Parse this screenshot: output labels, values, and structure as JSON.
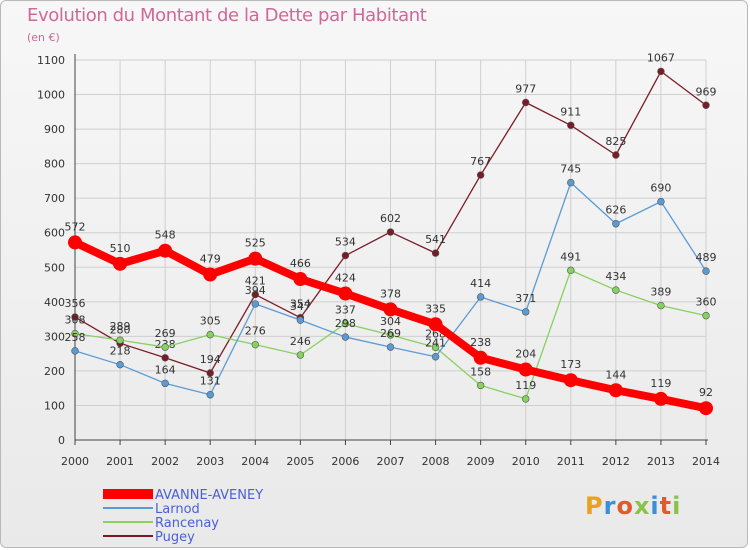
{
  "header": {
    "title": "Evolution du Montant de la Dette par Habitant",
    "unit": "(en €)"
  },
  "logo": {
    "text": "Proxiti",
    "colors": [
      "#e8a21c",
      "#3b8fd6",
      "#e05a2a",
      "#8bc34a",
      "#3b8fd6",
      "#e05a2a",
      "#8bc34a"
    ]
  },
  "colors": {
    "title": "#d0679a",
    "grid": "#cfcfcf",
    "axis": "#444444"
  },
  "chart_data": {
    "type": "line",
    "title": "Evolution du Montant de la Dette par Habitant",
    "ylabel": "(en €)",
    "xlabel": "",
    "x": [
      "2000",
      "2001",
      "2002",
      "2003",
      "2004",
      "2005",
      "2006",
      "2007",
      "2008",
      "2009",
      "2010",
      "2011",
      "2012",
      "2013",
      "2014"
    ],
    "ylim": [
      0,
      1100
    ],
    "yticks": [
      0,
      100,
      200,
      300,
      400,
      500,
      600,
      700,
      800,
      900,
      1000,
      1100
    ],
    "grid": true,
    "legend_position": "bottom-left",
    "series": [
      {
        "name": "Pugey",
        "color": "#7a1c27",
        "values": [
          356,
          280,
          238,
          194,
          421,
          354,
          534,
          602,
          541,
          767,
          977,
          911,
          825,
          1067,
          969
        ]
      },
      {
        "name": "Rancenay",
        "color": "#87d160",
        "values": [
          308,
          289,
          269,
          305,
          276,
          246,
          337,
          304,
          268,
          158,
          119,
          491,
          434,
          389,
          360
        ]
      },
      {
        "name": "Larnod",
        "color": "#5b9bd5",
        "values": [
          258,
          218,
          164,
          131,
          394,
          347,
          298,
          269,
          241,
          414,
          371,
          745,
          626,
          690,
          489
        ]
      },
      {
        "name": "AVANNE-AVENEY",
        "color": "#ff0000",
        "values": [
          572,
          510,
          548,
          479,
          525,
          466,
          424,
          378,
          335,
          238,
          204,
          173,
          144,
          119,
          92
        ]
      }
    ],
    "legend_order": [
      "AVANNE-AVENEY",
      "Larnod",
      "Rancenay",
      "Pugey"
    ]
  }
}
